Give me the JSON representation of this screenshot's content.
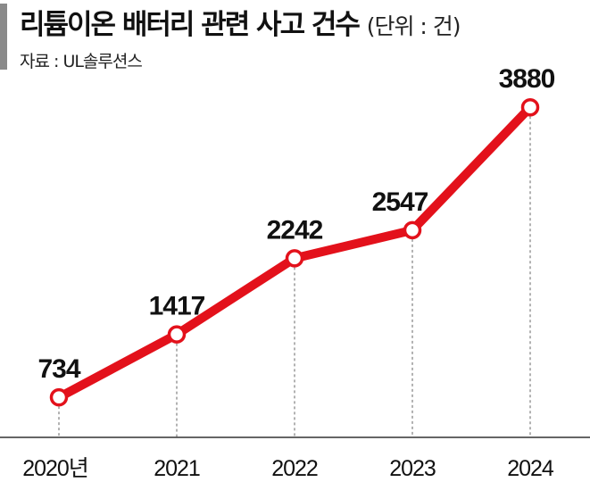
{
  "chart_data": {
    "type": "line",
    "title": "리튬이온 배터리 관련 사고 건수",
    "unit": "(단위 : 건)",
    "source": "자료 : UL솔루션스",
    "categories": [
      "2020년",
      "2021",
      "2022",
      "2023",
      "2024"
    ],
    "series": [
      {
        "values": [
          734,
          1417,
          2242,
          2547,
          3880
        ]
      }
    ],
    "data_labels": [
      "734",
      "1417",
      "2242",
      "2547",
      "3880"
    ],
    "ylim": [
      300,
      4000
    ],
    "grid": false,
    "line_color": "#e3111b",
    "marker_fill": "#ffffff"
  }
}
